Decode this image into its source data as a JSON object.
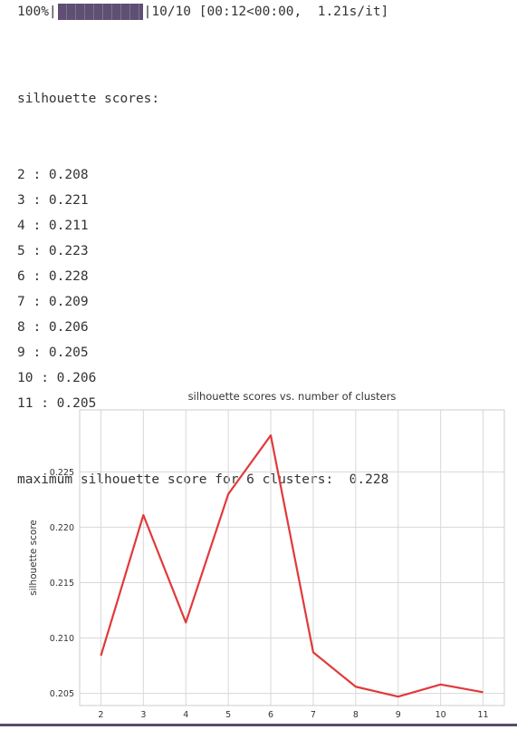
{
  "progress": {
    "percent_label": "100%",
    "fraction": 1.0,
    "status": "10/10 [00:12<00:00,  1.21s/it]"
  },
  "output": {
    "heading": "silhouette scores:",
    "lines": [
      "2 : 0.208",
      "3 : 0.221",
      "4 : 0.211",
      "5 : 0.223",
      "6 : 0.228",
      "7 : 0.209",
      "8 : 0.206",
      "9 : 0.205",
      "10 : 0.206",
      "11 : 0.205"
    ],
    "summary": "maximum silhouette score for 6 clusters:  0.228"
  },
  "chart_data": {
    "type": "line",
    "title": "silhouette scores vs. number of clusters",
    "xlabel": "",
    "ylabel": "silhouette score",
    "x": [
      2,
      3,
      4,
      5,
      6,
      7,
      8,
      9,
      10,
      11
    ],
    "y": [
      0.2084,
      0.2211,
      0.2114,
      0.223,
      0.2283,
      0.2087,
      0.2056,
      0.2047,
      0.2058,
      0.2051
    ],
    "xticks": [
      "2",
      "3",
      "4",
      "5",
      "6",
      "7",
      "8",
      "9",
      "10",
      "11"
    ],
    "yticks": [
      "0.205",
      "0.210",
      "0.215",
      "0.220",
      "0.225"
    ],
    "ytick_values": [
      0.205,
      0.21,
      0.215,
      0.22,
      0.225
    ],
    "xlim": [
      1.5,
      11.5
    ],
    "ylim": [
      0.2039,
      0.2306
    ],
    "grid": true,
    "line_color": "#e03a3a",
    "grid_color": "#d8d8d8"
  }
}
